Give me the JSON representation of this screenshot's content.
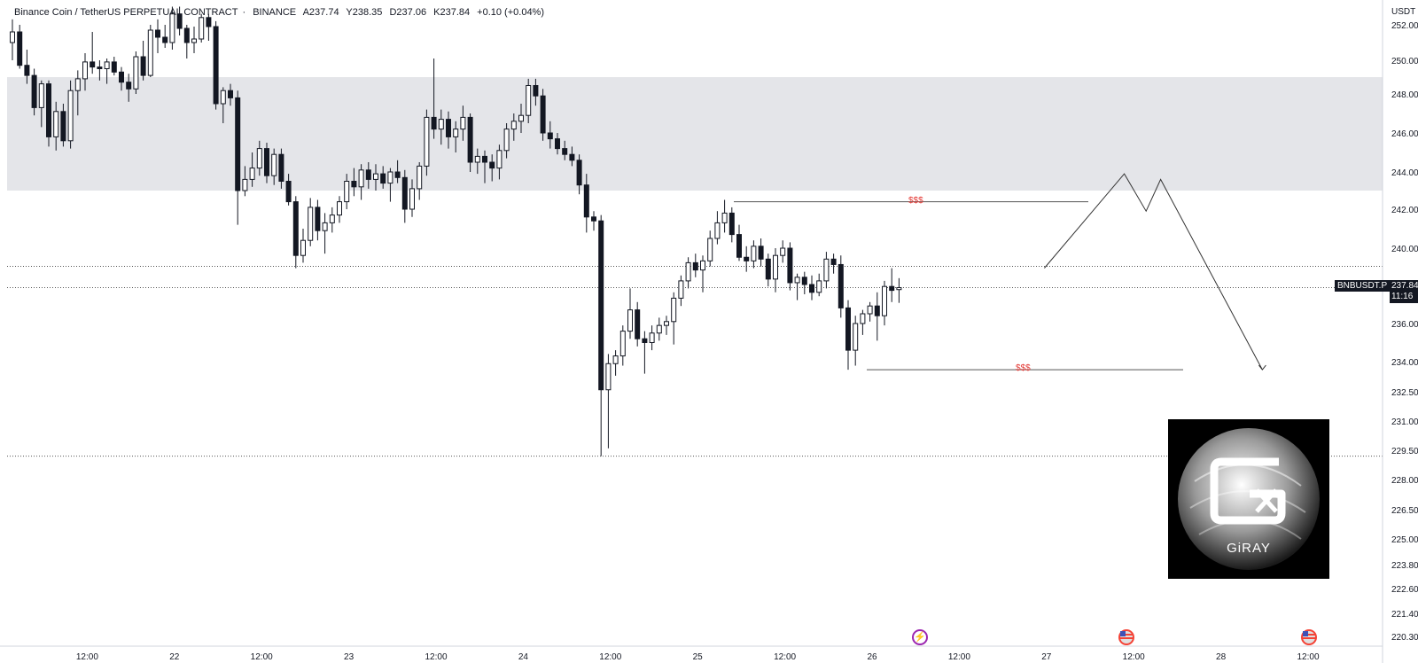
{
  "header": {
    "symbol_name": "Binance Coin / TetherUS PERPETUAL CONTRACT",
    "exchange": "BINANCE",
    "open": "A237.74",
    "high": "Y238.35",
    "low": "D237.06",
    "close": "K237.84",
    "change": "+0.10 (+0.04%)"
  },
  "axis": {
    "currency": "USDT",
    "price_labels": [
      "252.00",
      "250.00",
      "248.00",
      "246.00",
      "244.00",
      "242.00",
      "240.00",
      "238.00",
      "236.00",
      "234.00",
      "232.50",
      "231.00",
      "229.50",
      "228.00",
      "226.50",
      "225.00",
      "223.80",
      "222.60",
      "221.40",
      "220.30"
    ],
    "time_labels": [
      "12:00",
      "22",
      "12:00",
      "23",
      "12:00",
      "24",
      "12:00",
      "25",
      "12:00",
      "26",
      "12:00",
      "27",
      "12:00",
      "28",
      "12:00"
    ]
  },
  "ticker_tag": "BNBUSDT.P",
  "last_price": "237.84",
  "countdown": "11:16",
  "annotations": {
    "liquidity_top": "$$$",
    "liquidity_bottom": "$$$"
  },
  "watermark": {
    "brand": "GiRAY"
  },
  "events": [
    {
      "icon": "lightning-icon"
    },
    {
      "icon": "us-flag-icon"
    },
    {
      "icon": "us-flag-icon"
    }
  ],
  "colors": {
    "up": "#ffffff",
    "down": "#131722",
    "zone": "#e4e5e9",
    "annotation": "#e53935"
  },
  "chart_data": {
    "type": "candlestick",
    "symbol": "BNBUSDT.P",
    "timeframe": "1h",
    "x_unit": "hours since first visible candle",
    "ylim": [
      220.3,
      252.5
    ],
    "grid": false,
    "supply_zone": [
      243,
      249
    ],
    "horizontal_levels": [
      239,
      237.84,
      229.2
    ],
    "liquidity_levels": [
      242.4,
      233.6
    ],
    "projection_path": [
      [
        142,
        238.9
      ],
      [
        153,
        243.9
      ],
      [
        156,
        241.9
      ],
      [
        158,
        243.6
      ],
      [
        172,
        233.6
      ]
    ],
    "candles": [
      {
        "o": 251.0,
        "h": 252.3,
        "l": 250.0,
        "c": 251.6
      },
      {
        "o": 251.6,
        "h": 252.0,
        "l": 249.5,
        "c": 249.7
      },
      {
        "o": 249.7,
        "h": 250.6,
        "l": 248.6,
        "c": 249.1
      },
      {
        "o": 249.1,
        "h": 249.5,
        "l": 246.9,
        "c": 247.3
      },
      {
        "o": 247.3,
        "h": 248.8,
        "l": 246.3,
        "c": 248.6
      },
      {
        "o": 248.6,
        "h": 248.8,
        "l": 245.3,
        "c": 245.8
      },
      {
        "o": 245.8,
        "h": 247.6,
        "l": 245.1,
        "c": 247.1
      },
      {
        "o": 247.1,
        "h": 247.5,
        "l": 245.3,
        "c": 245.6
      },
      {
        "o": 245.6,
        "h": 248.8,
        "l": 245.2,
        "c": 248.2
      },
      {
        "o": 248.2,
        "h": 249.4,
        "l": 246.9,
        "c": 248.9
      },
      {
        "o": 248.9,
        "h": 250.4,
        "l": 248.2,
        "c": 249.9
      },
      {
        "o": 249.9,
        "h": 251.6,
        "l": 249.2,
        "c": 249.6
      },
      {
        "o": 249.6,
        "h": 250.0,
        "l": 248.8,
        "c": 249.5
      },
      {
        "o": 249.5,
        "h": 250.1,
        "l": 248.6,
        "c": 249.9
      },
      {
        "o": 249.9,
        "h": 250.2,
        "l": 249.1,
        "c": 249.3
      },
      {
        "o": 249.3,
        "h": 249.6,
        "l": 248.2,
        "c": 248.7
      },
      {
        "o": 248.7,
        "h": 249.2,
        "l": 247.6,
        "c": 248.3
      },
      {
        "o": 248.3,
        "h": 250.5,
        "l": 248.0,
        "c": 250.2
      },
      {
        "o": 250.2,
        "h": 251.1,
        "l": 248.8,
        "c": 249.1
      },
      {
        "o": 249.1,
        "h": 252.0,
        "l": 249.0,
        "c": 251.7
      },
      {
        "o": 251.7,
        "h": 252.3,
        "l": 250.4,
        "c": 251.3
      },
      {
        "o": 251.3,
        "h": 252.0,
        "l": 250.7,
        "c": 251.0
      },
      {
        "o": 251.0,
        "h": 253.0,
        "l": 250.6,
        "c": 252.6
      },
      {
        "o": 252.6,
        "h": 253.0,
        "l": 251.4,
        "c": 251.8
      },
      {
        "o": 251.8,
        "h": 252.0,
        "l": 250.1,
        "c": 251.0
      },
      {
        "o": 251.0,
        "h": 251.9,
        "l": 250.4,
        "c": 251.2
      },
      {
        "o": 251.2,
        "h": 252.6,
        "l": 251.0,
        "c": 252.4
      },
      {
        "o": 252.4,
        "h": 252.6,
        "l": 251.1,
        "c": 251.9
      },
      {
        "o": 251.9,
        "h": 252.2,
        "l": 247.2,
        "c": 247.5
      },
      {
        "o": 247.5,
        "h": 248.4,
        "l": 246.5,
        "c": 248.2
      },
      {
        "o": 248.2,
        "h": 248.6,
        "l": 247.4,
        "c": 247.8
      },
      {
        "o": 247.8,
        "h": 248.2,
        "l": 241.2,
        "c": 243.0
      },
      {
        "o": 243.0,
        "h": 244.3,
        "l": 242.7,
        "c": 243.6
      },
      {
        "o": 243.6,
        "h": 245.0,
        "l": 243.2,
        "c": 244.2
      },
      {
        "o": 244.2,
        "h": 245.6,
        "l": 243.8,
        "c": 245.2
      },
      {
        "o": 245.2,
        "h": 245.5,
        "l": 243.4,
        "c": 243.8
      },
      {
        "o": 243.8,
        "h": 245.2,
        "l": 243.3,
        "c": 244.9
      },
      {
        "o": 244.9,
        "h": 245.2,
        "l": 243.1,
        "c": 243.5
      },
      {
        "o": 243.5,
        "h": 243.9,
        "l": 242.2,
        "c": 242.4
      },
      {
        "o": 242.4,
        "h": 242.7,
        "l": 238.9,
        "c": 239.6
      },
      {
        "o": 239.6,
        "h": 241.0,
        "l": 239.2,
        "c": 240.4
      },
      {
        "o": 240.4,
        "h": 242.6,
        "l": 240.1,
        "c": 242.1
      },
      {
        "o": 242.1,
        "h": 242.5,
        "l": 240.4,
        "c": 240.9
      },
      {
        "o": 240.9,
        "h": 241.8,
        "l": 239.7,
        "c": 241.3
      },
      {
        "o": 241.3,
        "h": 242.1,
        "l": 240.8,
        "c": 241.7
      },
      {
        "o": 241.7,
        "h": 242.7,
        "l": 241.3,
        "c": 242.4
      },
      {
        "o": 242.4,
        "h": 243.9,
        "l": 242.0,
        "c": 243.5
      },
      {
        "o": 243.5,
        "h": 244.2,
        "l": 242.7,
        "c": 243.2
      },
      {
        "o": 243.2,
        "h": 244.4,
        "l": 242.5,
        "c": 244.1
      },
      {
        "o": 244.1,
        "h": 244.5,
        "l": 243.1,
        "c": 243.6
      },
      {
        "o": 243.6,
        "h": 244.4,
        "l": 243.0,
        "c": 243.9
      },
      {
        "o": 243.9,
        "h": 244.3,
        "l": 243.1,
        "c": 243.4
      },
      {
        "o": 243.4,
        "h": 244.2,
        "l": 242.4,
        "c": 244.0
      },
      {
        "o": 244.0,
        "h": 244.6,
        "l": 243.4,
        "c": 243.7
      },
      {
        "o": 243.7,
        "h": 244.1,
        "l": 241.3,
        "c": 242.0
      },
      {
        "o": 242.0,
        "h": 243.6,
        "l": 241.6,
        "c": 243.1
      },
      {
        "o": 243.1,
        "h": 244.5,
        "l": 242.5,
        "c": 244.3
      },
      {
        "o": 244.3,
        "h": 247.2,
        "l": 243.8,
        "c": 246.8
      },
      {
        "o": 246.8,
        "h": 250.1,
        "l": 245.7,
        "c": 246.2
      },
      {
        "o": 246.2,
        "h": 247.2,
        "l": 245.4,
        "c": 246.7
      },
      {
        "o": 246.7,
        "h": 247.1,
        "l": 245.2,
        "c": 245.8
      },
      {
        "o": 245.8,
        "h": 246.6,
        "l": 245.0,
        "c": 246.2
      },
      {
        "o": 246.2,
        "h": 247.4,
        "l": 245.6,
        "c": 246.8
      },
      {
        "o": 246.8,
        "h": 247.0,
        "l": 244.0,
        "c": 244.5
      },
      {
        "o": 244.5,
        "h": 245.2,
        "l": 243.9,
        "c": 244.8
      },
      {
        "o": 244.8,
        "h": 245.1,
        "l": 243.4,
        "c": 244.5
      },
      {
        "o": 244.5,
        "h": 244.9,
        "l": 243.5,
        "c": 244.2
      },
      {
        "o": 244.2,
        "h": 245.4,
        "l": 243.6,
        "c": 245.1
      },
      {
        "o": 245.1,
        "h": 246.5,
        "l": 244.7,
        "c": 246.2
      },
      {
        "o": 246.2,
        "h": 247.0,
        "l": 245.6,
        "c": 246.6
      },
      {
        "o": 246.6,
        "h": 247.5,
        "l": 246.0,
        "c": 246.9
      },
      {
        "o": 246.9,
        "h": 248.9,
        "l": 246.5,
        "c": 248.5
      },
      {
        "o": 248.5,
        "h": 248.9,
        "l": 247.4,
        "c": 247.9
      },
      {
        "o": 247.9,
        "h": 248.3,
        "l": 245.6,
        "c": 246.0
      },
      {
        "o": 246.0,
        "h": 246.6,
        "l": 245.2,
        "c": 245.7
      },
      {
        "o": 245.7,
        "h": 246.0,
        "l": 244.9,
        "c": 245.2
      },
      {
        "o": 245.2,
        "h": 245.6,
        "l": 244.6,
        "c": 244.9
      },
      {
        "o": 244.9,
        "h": 245.3,
        "l": 244.3,
        "c": 244.6
      },
      {
        "o": 244.6,
        "h": 244.9,
        "l": 242.8,
        "c": 243.3
      },
      {
        "o": 243.3,
        "h": 243.9,
        "l": 240.8,
        "c": 241.6
      },
      {
        "o": 241.6,
        "h": 241.9,
        "l": 240.9,
        "c": 241.4
      },
      {
        "o": 241.4,
        "h": 241.7,
        "l": 229.2,
        "c": 232.6
      },
      {
        "o": 232.6,
        "h": 234.4,
        "l": 229.6,
        "c": 233.9
      },
      {
        "o": 233.9,
        "h": 234.6,
        "l": 233.3,
        "c": 234.3
      },
      {
        "o": 234.3,
        "h": 235.9,
        "l": 233.8,
        "c": 235.6
      },
      {
        "o": 235.6,
        "h": 237.8,
        "l": 235.2,
        "c": 236.7
      },
      {
        "o": 236.7,
        "h": 237.1,
        "l": 234.8,
        "c": 235.2
      },
      {
        "o": 235.2,
        "h": 235.6,
        "l": 233.4,
        "c": 235.0
      },
      {
        "o": 235.0,
        "h": 235.9,
        "l": 234.6,
        "c": 235.5
      },
      {
        "o": 235.5,
        "h": 236.3,
        "l": 235.1,
        "c": 235.9
      },
      {
        "o": 235.9,
        "h": 236.4,
        "l": 235.4,
        "c": 236.1
      },
      {
        "o": 236.1,
        "h": 237.6,
        "l": 234.9,
        "c": 237.3
      },
      {
        "o": 237.3,
        "h": 238.5,
        "l": 236.9,
        "c": 238.2
      },
      {
        "o": 238.2,
        "h": 239.5,
        "l": 237.8,
        "c": 239.2
      },
      {
        "o": 239.2,
        "h": 239.7,
        "l": 238.4,
        "c": 238.8
      },
      {
        "o": 238.8,
        "h": 239.6,
        "l": 237.6,
        "c": 239.3
      },
      {
        "o": 239.3,
        "h": 240.9,
        "l": 239.0,
        "c": 240.5
      },
      {
        "o": 240.5,
        "h": 241.9,
        "l": 240.2,
        "c": 241.3
      },
      {
        "o": 241.3,
        "h": 242.5,
        "l": 240.8,
        "c": 241.8
      },
      {
        "o": 241.8,
        "h": 242.1,
        "l": 240.3,
        "c": 240.7
      },
      {
        "o": 240.7,
        "h": 241.2,
        "l": 239.3,
        "c": 239.5
      },
      {
        "o": 239.5,
        "h": 240.1,
        "l": 238.7,
        "c": 239.3
      },
      {
        "o": 239.3,
        "h": 240.4,
        "l": 238.9,
        "c": 240.1
      },
      {
        "o": 240.1,
        "h": 240.5,
        "l": 239.0,
        "c": 239.4
      },
      {
        "o": 239.4,
        "h": 239.7,
        "l": 237.9,
        "c": 238.3
      },
      {
        "o": 238.3,
        "h": 240.0,
        "l": 237.6,
        "c": 239.6
      },
      {
        "o": 239.6,
        "h": 240.4,
        "l": 239.2,
        "c": 240.0
      },
      {
        "o": 240.0,
        "h": 240.3,
        "l": 237.7,
        "c": 238.1
      },
      {
        "o": 238.1,
        "h": 238.6,
        "l": 237.2,
        "c": 238.4
      },
      {
        "o": 238.4,
        "h": 238.7,
        "l": 237.5,
        "c": 238.0
      },
      {
        "o": 238.0,
        "h": 238.5,
        "l": 237.2,
        "c": 237.6
      },
      {
        "o": 237.6,
        "h": 238.6,
        "l": 237.4,
        "c": 238.2
      },
      {
        "o": 238.2,
        "h": 239.8,
        "l": 237.8,
        "c": 239.4
      },
      {
        "o": 239.4,
        "h": 239.7,
        "l": 238.6,
        "c": 239.1
      },
      {
        "o": 239.1,
        "h": 239.6,
        "l": 236.3,
        "c": 236.8
      },
      {
        "o": 236.8,
        "h": 237.2,
        "l": 233.6,
        "c": 234.6
      },
      {
        "o": 234.6,
        "h": 236.4,
        "l": 233.8,
        "c": 236.0
      },
      {
        "o": 236.0,
        "h": 236.7,
        "l": 235.4,
        "c": 236.5
      },
      {
        "o": 236.5,
        "h": 237.1,
        "l": 236.1,
        "c": 236.9
      },
      {
        "o": 236.9,
        "h": 237.6,
        "l": 235.1,
        "c": 236.4
      },
      {
        "o": 236.4,
        "h": 238.2,
        "l": 235.9,
        "c": 237.9
      },
      {
        "o": 237.9,
        "h": 238.9,
        "l": 237.1,
        "c": 237.7
      },
      {
        "o": 237.74,
        "h": 238.35,
        "l": 237.06,
        "c": 237.84
      }
    ]
  }
}
